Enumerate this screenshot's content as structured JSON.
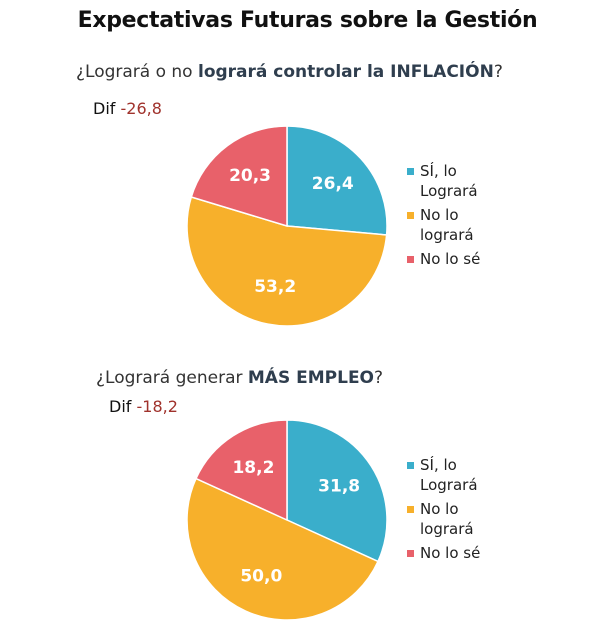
{
  "title": "Expectativas Futuras sobre la Gestión",
  "colors": {
    "si": "#3aaecb",
    "no": "#f7b02b",
    "nose": "#e8616a"
  },
  "questions": [
    {
      "pre": "¿Logrará o no ",
      "bold": "logrará controlar la INFLACIÓN",
      "post": "?",
      "dif_label": "Dif",
      "dif_value": "-26,8"
    },
    {
      "pre": "¿Logrará generar ",
      "bold": "MÁS EMPLEO",
      "post": "?",
      "dif_label": "Dif",
      "dif_value": "-18,2"
    }
  ],
  "chart_data": [
    {
      "type": "pie",
      "title": "¿Logrará o no logrará controlar la INFLACIÓN?",
      "categories": [
        "SÍ, lo Logrará",
        "No lo logrará",
        "No lo sé"
      ],
      "values": [
        26.4,
        53.2,
        20.3
      ],
      "value_labels": [
        "26,4",
        "53,2",
        "20,3"
      ],
      "colors": [
        "#3aaecb",
        "#f7b02b",
        "#e8616a"
      ],
      "legend": "right",
      "legend_labels": [
        [
          "SÍ, lo",
          "Logrará"
        ],
        [
          "No lo",
          "logrará"
        ],
        [
          "No lo sé"
        ]
      ]
    },
    {
      "type": "pie",
      "title": "¿Logrará generar MÁS EMPLEO?",
      "categories": [
        "SÍ, lo Logrará",
        "No lo logrará",
        "No lo sé"
      ],
      "values": [
        31.8,
        50.0,
        18.2
      ],
      "value_labels": [
        "31,8",
        "50,0",
        "18,2"
      ],
      "colors": [
        "#3aaecb",
        "#f7b02b",
        "#e8616a"
      ],
      "legend": "right",
      "legend_labels": [
        [
          "SÍ, lo",
          "Logrará"
        ],
        [
          "No lo",
          "logrará"
        ],
        [
          "No lo sé"
        ]
      ]
    }
  ]
}
